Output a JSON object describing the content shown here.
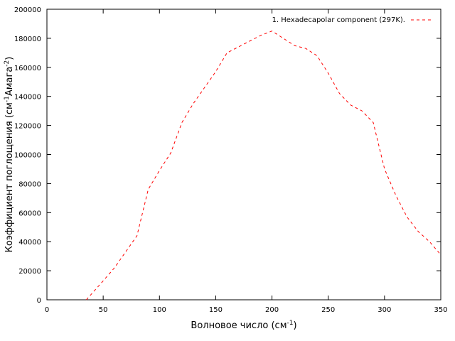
{
  "chart_data": {
    "type": "line",
    "xlabel": {
      "main": "Волновое число (см",
      "sup": "-1",
      "tail": ")"
    },
    "ylabel": {
      "main": "Коэффициент поглощения (см",
      "sup1": "-1",
      "mid": "Амага",
      "sup2": "-2",
      "tail": ")"
    },
    "xlim": [
      0,
      350
    ],
    "ylim": [
      0,
      200000
    ],
    "xticks": [
      0,
      50,
      100,
      150,
      200,
      250,
      300,
      350
    ],
    "yticks": [
      0,
      20000,
      40000,
      60000,
      80000,
      100000,
      120000,
      140000,
      160000,
      180000,
      200000
    ],
    "legend_position": "top-right",
    "grid": false,
    "series": [
      {
        "name": "1. Hexadecapolar component (297K).",
        "color": "#ff0000",
        "style": "dashed",
        "x": [
          35,
          50,
          60,
          70,
          80,
          90,
          100,
          110,
          120,
          130,
          140,
          150,
          160,
          170,
          180,
          190,
          200,
          210,
          220,
          230,
          240,
          250,
          260,
          270,
          280,
          290,
          300,
          310,
          320,
          330,
          340,
          350
        ],
        "y": [
          0,
          13000,
          22000,
          33000,
          44000,
          76000,
          89000,
          101000,
          122000,
          135000,
          146000,
          157000,
          170000,
          174000,
          178000,
          182000,
          185000,
          180000,
          175000,
          173000,
          168000,
          156000,
          142000,
          134000,
          130000,
          122000,
          90000,
          72000,
          57000,
          47000,
          40000,
          31000
        ]
      }
    ]
  }
}
